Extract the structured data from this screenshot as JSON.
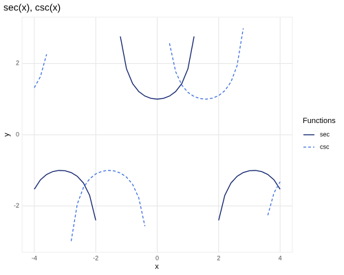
{
  "chart_data": {
    "type": "line",
    "title": "sec(x), csc(x)",
    "x_label": "x",
    "y_label": "y",
    "x": [
      -4,
      -3.8,
      -3.6,
      -3.4,
      -3.2,
      -3,
      -2.8,
      -2.6,
      -2.4,
      -2.2,
      -2,
      -1.8,
      -1.6,
      -1.4,
      -1.2,
      -1,
      -0.8,
      -0.6,
      -0.4,
      -0.2,
      0,
      0.2,
      0.4,
      0.6,
      0.8,
      1,
      1.2,
      1.4,
      1.6,
      1.8,
      2,
      2.2,
      2.4,
      2.6,
      2.8,
      3,
      3.2,
      3.4,
      3.6,
      3.8,
      4
    ],
    "series": [
      {
        "name": "sec",
        "color": "#0b1f6b",
        "dash": "solid",
        "values": [
          -1.53,
          -1.264,
          -1.115,
          -1.034,
          -1.002,
          -1.01,
          -1.061,
          -1.167,
          -1.356,
          -1.699,
          -2.403,
          null,
          null,
          null,
          2.759,
          1.851,
          1.435,
          1.212,
          1.086,
          1.02,
          1,
          1.02,
          1.086,
          1.212,
          1.435,
          1.851,
          2.759,
          null,
          null,
          null,
          -2.403,
          -1.699,
          -1.356,
          -1.167,
          -1.061,
          -1.01,
          -1.002,
          -1.034,
          -1.115,
          -1.264,
          -1.53
        ]
      },
      {
        "name": "csc",
        "color": "#3b6ee0",
        "dash": "dashed",
        "values": [
          1.321,
          1.634,
          2.26,
          null,
          null,
          null,
          -2.985,
          -1.94,
          -1.48,
          -1.237,
          -1.1,
          -1.027,
          -1,
          -1.015,
          -1.073,
          -1.188,
          -1.394,
          -1.771,
          -2.568,
          null,
          null,
          null,
          2.568,
          1.771,
          1.394,
          1.188,
          1.073,
          1.015,
          1,
          1.027,
          1.1,
          1.237,
          1.48,
          1.94,
          2.985,
          null,
          null,
          null,
          -2.26,
          -1.634,
          -1.321
        ]
      }
    ],
    "legend_title": "Functions",
    "legend_position": "right",
    "xlim": [
      -4.4,
      4.4
    ],
    "ylim": [
      -3.3,
      3.3
    ],
    "xticks": [
      -4,
      -2,
      0,
      2,
      4
    ],
    "yticks": [
      -2,
      0,
      2
    ],
    "grid": true
  }
}
